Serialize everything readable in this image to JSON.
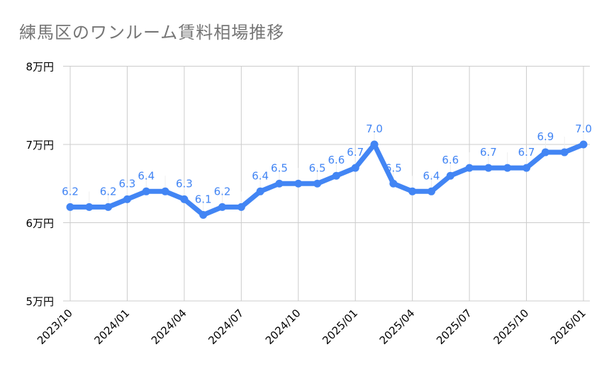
{
  "title": "練馬区のワンルーム賃料相場推移",
  "colors": {
    "line": "#4285F4",
    "label": "#4285F4",
    "grid": "#CCCCCC",
    "title": "#757575"
  },
  "chart_data": {
    "type": "line",
    "title": "練馬区のワンルーム賃料相場推移",
    "xlabel": "",
    "ylabel": "",
    "ylim": [
      5,
      8
    ],
    "y_ticks": [
      "5万円",
      "6万円",
      "7万円",
      "8万円"
    ],
    "y_tick_values": [
      5,
      6,
      7,
      8
    ],
    "x_tick_labels": [
      "2023/10",
      "2024/01",
      "2024/04",
      "2024/07",
      "2024/10",
      "2025/01",
      "2025/04",
      "2025/07",
      "2025/10",
      "2026/01"
    ],
    "grid": true,
    "legend": "none",
    "unit": "万円",
    "categories": [
      "2023/10",
      "2023/11",
      "2023/12",
      "2024/01",
      "2024/02",
      "2024/03",
      "2024/04",
      "2024/05",
      "2024/06",
      "2024/07",
      "2024/08",
      "2024/09",
      "2024/10",
      "2024/11",
      "2024/12",
      "2025/01",
      "2025/02",
      "2025/03",
      "2025/04",
      "2025/05",
      "2025/06",
      "2025/07",
      "2025/08",
      "2025/09",
      "2025/10",
      "2025/11",
      "2025/12",
      "2026/01"
    ],
    "series": [
      {
        "name": "賃料相場",
        "values": [
          6.2,
          6.2,
          6.2,
          6.3,
          6.4,
          6.4,
          6.3,
          6.1,
          6.2,
          6.2,
          6.4,
          6.5,
          6.5,
          6.5,
          6.6,
          6.7,
          7.0,
          6.5,
          6.4,
          6.4,
          6.6,
          6.7,
          6.7,
          6.7,
          6.7,
          6.9,
          6.9,
          7.0
        ]
      }
    ],
    "data_labels": [
      {
        "i": 0,
        "text": "6.2"
      },
      {
        "i": 2,
        "text": "6.2"
      },
      {
        "i": 3,
        "text": "6.3"
      },
      {
        "i": 4,
        "text": "6.4"
      },
      {
        "i": 6,
        "text": "6.3"
      },
      {
        "i": 7,
        "text": "6.1"
      },
      {
        "i": 8,
        "text": "6.2"
      },
      {
        "i": 10,
        "text": "6.4"
      },
      {
        "i": 11,
        "text": "6.5"
      },
      {
        "i": 13,
        "text": "6.5"
      },
      {
        "i": 14,
        "text": "6.6"
      },
      {
        "i": 15,
        "text": "6.7"
      },
      {
        "i": 16,
        "text": "7.0"
      },
      {
        "i": 17,
        "text": "6.5"
      },
      {
        "i": 19,
        "text": "6.4"
      },
      {
        "i": 20,
        "text": "6.6"
      },
      {
        "i": 22,
        "text": "6.7"
      },
      {
        "i": 24,
        "text": "6.7"
      },
      {
        "i": 25,
        "text": "6.9"
      },
      {
        "i": 27,
        "text": "7.0"
      }
    ]
  }
}
